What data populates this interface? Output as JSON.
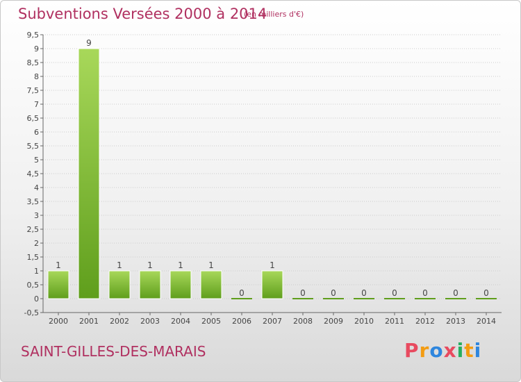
{
  "title": "Subventions Versées 2000 à 2014",
  "unit": "(en milliers d'€)",
  "commune": "SAINT-GILLES-DES-MARAIS",
  "logo": {
    "letters": [
      "P",
      "r",
      "o",
      "x",
      "i",
      "t",
      "i"
    ],
    "colors": [
      "#e84a5f",
      "#f39c12",
      "#2e86de",
      "#e84a5f",
      "#27ae60",
      "#f39c12",
      "#2e86de"
    ]
  },
  "colors": {
    "title": "#b03060",
    "bar_light": "#a8d85a",
    "bar_dark": "#5f9e1c",
    "grid": "#cccccc"
  },
  "chart_data": {
    "type": "bar",
    "categories": [
      "2000",
      "2001",
      "2002",
      "2003",
      "2004",
      "2005",
      "2006",
      "2007",
      "2008",
      "2009",
      "2010",
      "2011",
      "2012",
      "2013",
      "2014"
    ],
    "values": [
      1,
      9,
      1,
      1,
      1,
      1,
      0,
      1,
      0,
      0,
      0,
      0,
      0,
      0,
      0
    ],
    "value_labels": [
      "1",
      "9",
      "1",
      "1",
      "1",
      "1",
      "0",
      "1",
      "0",
      "0",
      "0",
      "0",
      "0",
      "0",
      "0"
    ],
    "title": "Subventions Versées 2000 à 2014",
    "xlabel": "",
    "ylabel": "",
    "ylim": [
      -0.5,
      9.5
    ],
    "yticks": [
      "-0,5",
      "0",
      "0,5",
      "1",
      "1,5",
      "2",
      "2,5",
      "3",
      "3,5",
      "4",
      "4,5",
      "5",
      "5,5",
      "6",
      "6,5",
      "7",
      "7,5",
      "8",
      "8,5",
      "9",
      "9,5"
    ],
    "ytick_values": [
      -0.5,
      0,
      0.5,
      1,
      1.5,
      2,
      2.5,
      3,
      3.5,
      4,
      4.5,
      5,
      5.5,
      6,
      6.5,
      7,
      7.5,
      8,
      8.5,
      9,
      9.5
    ],
    "grid": true,
    "legend": "none"
  }
}
